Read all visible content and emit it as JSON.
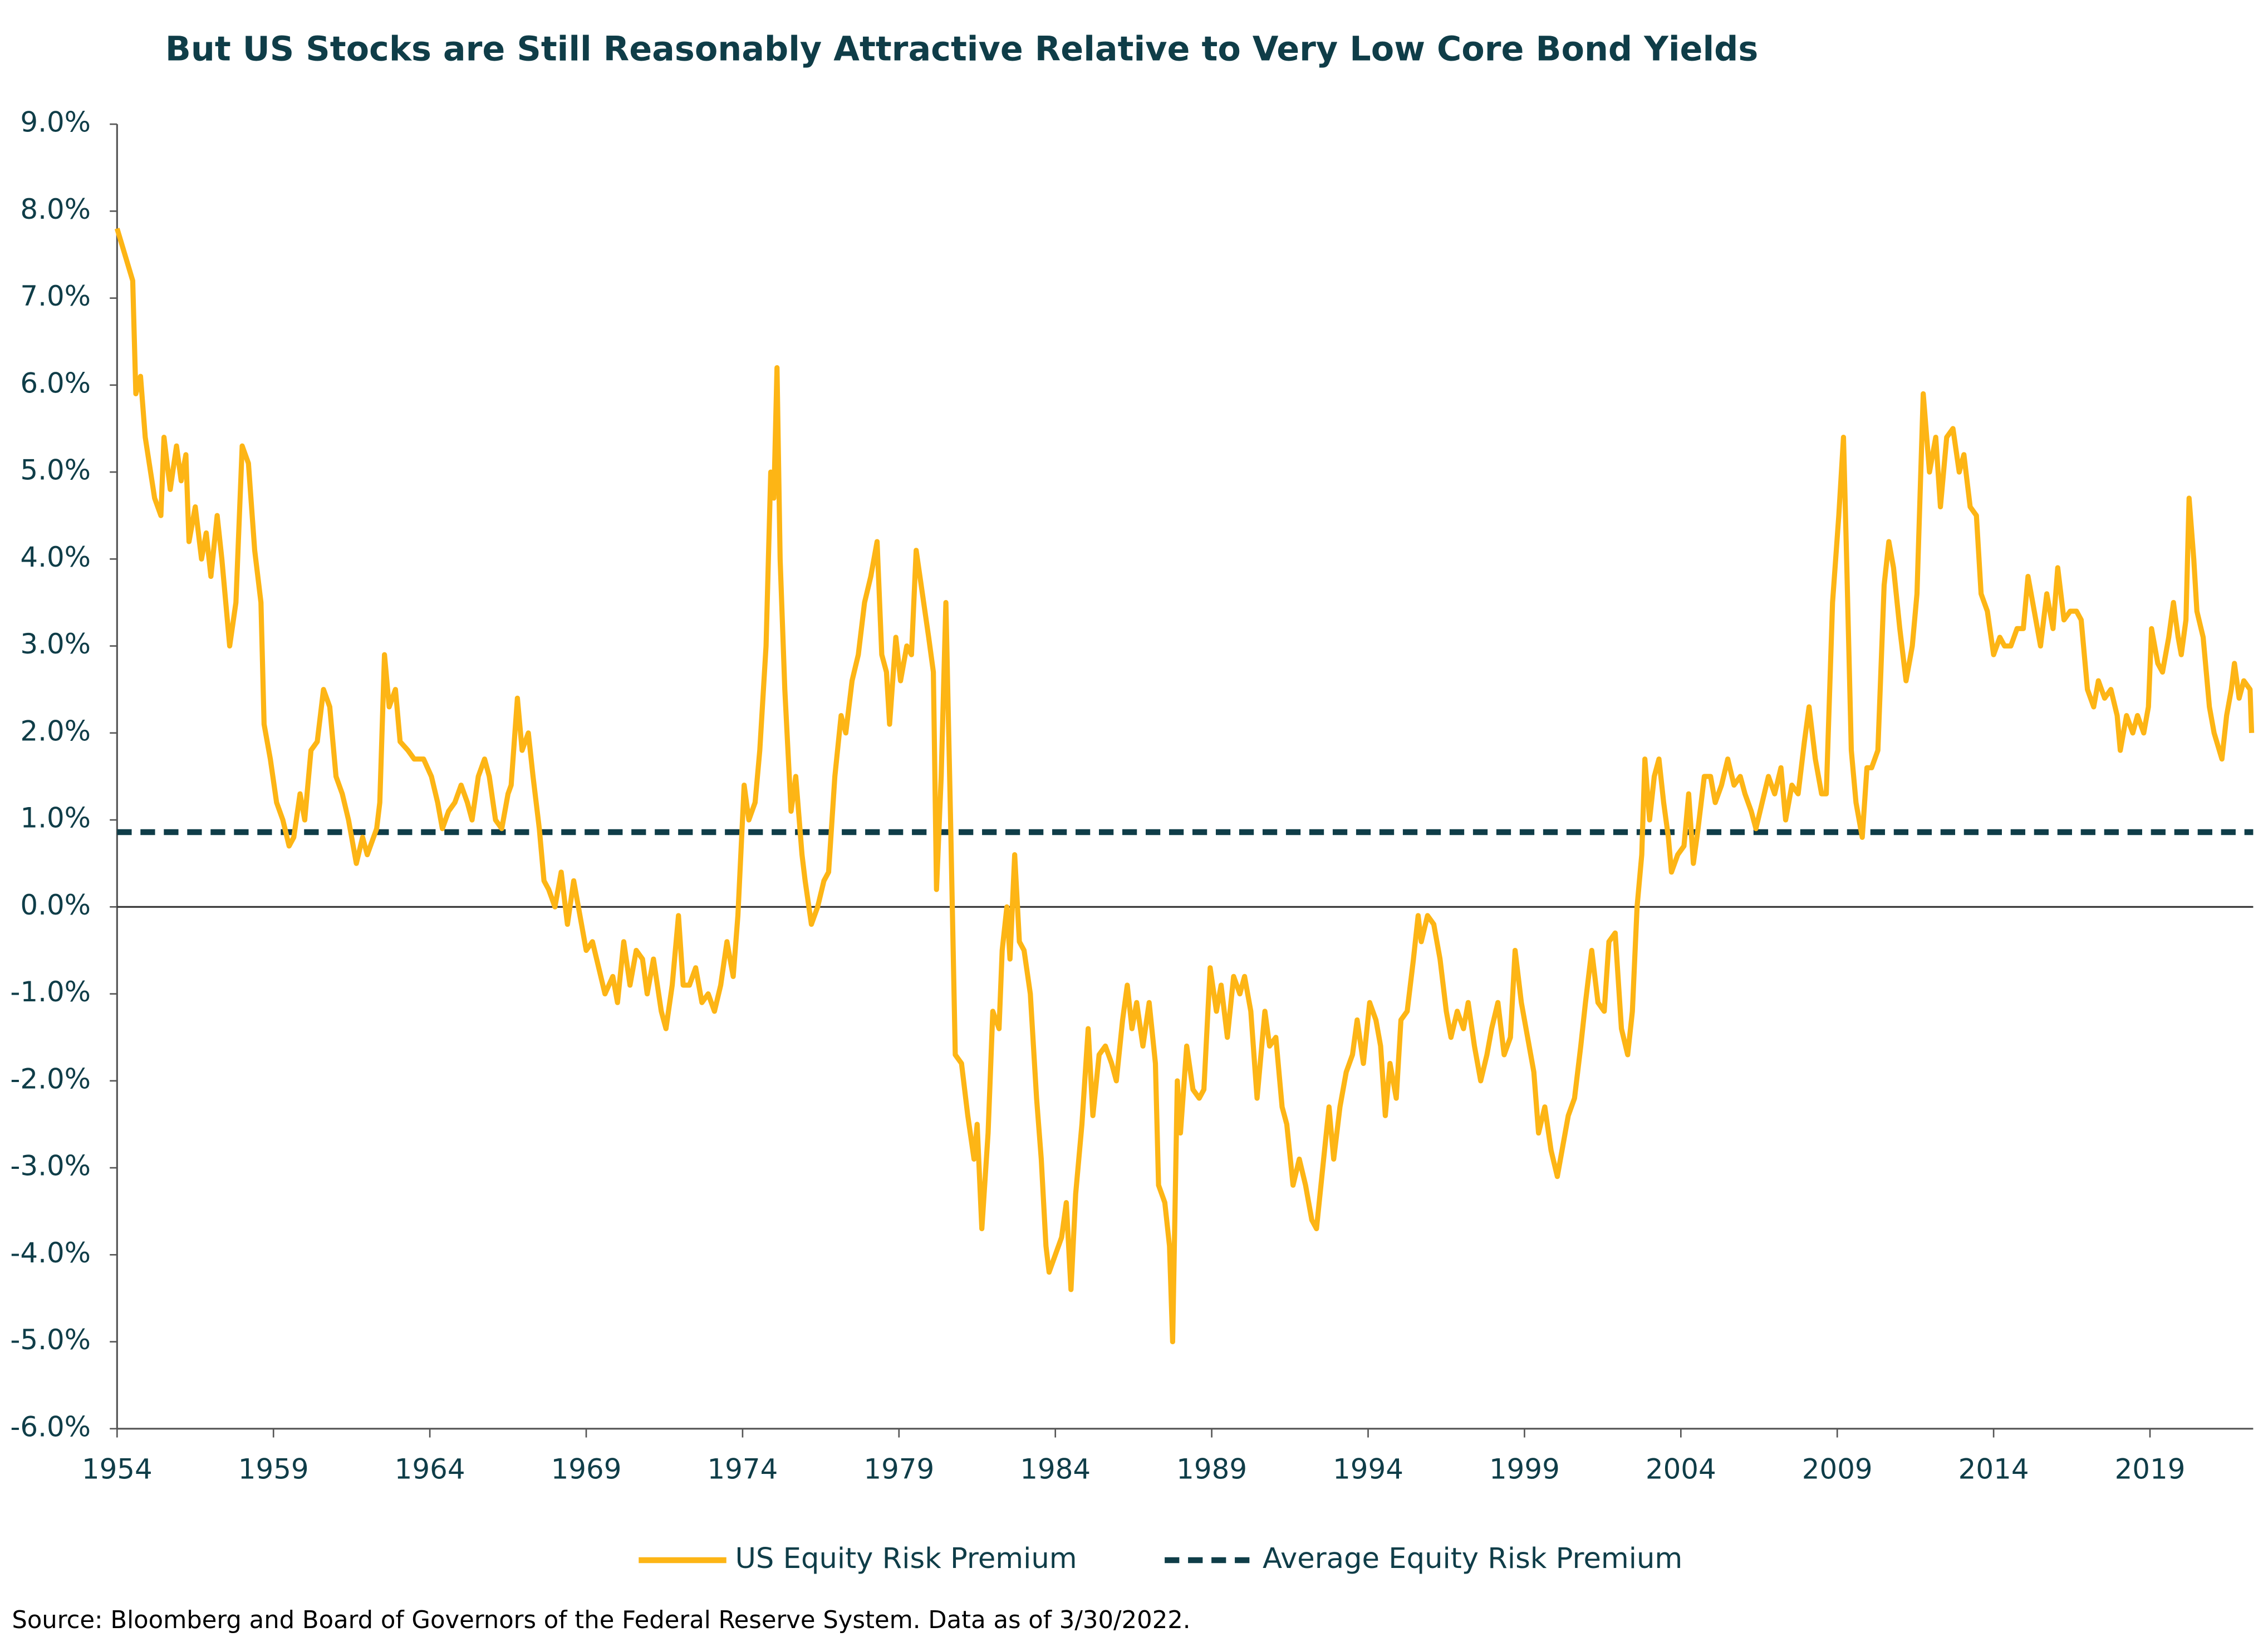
{
  "chart_data": {
    "type": "line",
    "title": "But US Stocks are Still Reasonably Attractive Relative to Very Low Core Bond Yields",
    "source": "Source: Bloomberg and Board of Governors of the Federal Reserve System. Data as of 3/30/2022.",
    "x": [
      1954.0,
      1954.5,
      1954.6,
      1954.75,
      1954.9,
      1955.2,
      1955.4,
      1955.5,
      1955.7,
      1955.9,
      1956.05,
      1956.2,
      1956.3,
      1956.5,
      1956.7,
      1956.85,
      1957.0,
      1957.2,
      1957.35,
      1957.6,
      1957.8,
      1958.0,
      1958.2,
      1958.4,
      1958.6,
      1958.7,
      1958.9,
      1959.1,
      1959.3,
      1959.5,
      1959.65,
      1959.85,
      1960.0,
      1960.2,
      1960.4,
      1960.6,
      1960.8,
      1961.0,
      1961.2,
      1961.4,
      1961.5,
      1961.65,
      1961.85,
      1962.0,
      1962.3,
      1962.4,
      1962.55,
      1962.7,
      1962.9,
      1963.05,
      1963.3,
      1963.5,
      1963.8,
      1964.05,
      1964.25,
      1964.4,
      1964.6,
      1964.8,
      1965.0,
      1965.2,
      1965.35,
      1965.55,
      1965.75,
      1965.9,
      1966.1,
      1966.3,
      1966.5,
      1966.6,
      1966.8,
      1966.95,
      1967.15,
      1967.3,
      1967.5,
      1967.65,
      1967.8,
      1968.0,
      1968.2,
      1968.4,
      1968.6,
      1968.8,
      1969.0,
      1969.2,
      1969.4,
      1969.6,
      1969.85,
      1970.0,
      1970.2,
      1970.4,
      1970.6,
      1970.8,
      1970.95,
      1971.15,
      1971.4,
      1971.55,
      1971.75,
      1971.95,
      1972.1,
      1972.3,
      1972.5,
      1972.7,
      1972.9,
      1973.1,
      1973.3,
      1973.5,
      1973.7,
      1973.85,
      1974.05,
      1974.2,
      1974.4,
      1974.55,
      1974.75,
      1974.9,
      1975.0,
      1975.1,
      1975.2,
      1975.35,
      1975.55,
      1975.7,
      1975.9,
      1976.0,
      1976.2,
      1976.4,
      1976.6,
      1976.75,
      1976.95,
      1977.15,
      1977.3,
      1977.5,
      1977.7,
      1977.9,
      1978.1,
      1978.3,
      1978.45,
      1978.6,
      1978.7,
      1978.9,
      1979.05,
      1979.25,
      1979.4,
      1979.55,
      1979.75,
      1979.95,
      1980.1,
      1980.2,
      1980.35,
      1980.5,
      1980.65,
      1980.8,
      1981.0,
      1981.2,
      1981.4,
      1981.5,
      1981.65,
      1981.85,
      1982.0,
      1982.2,
      1982.3,
      1982.45,
      1982.55,
      1982.7,
      1982.85,
      1983.0,
      1983.2,
      1983.4,
      1983.55,
      1983.7,
      1983.8,
      1984.0,
      1984.2,
      1984.35,
      1984.5,
      1984.65,
      1984.85,
      1985.05,
      1985.2,
      1985.4,
      1985.6,
      1985.8,
      1985.95,
      1986.15,
      1986.3,
      1986.45,
      1986.6,
      1986.8,
      1987.0,
      1987.2,
      1987.3,
      1987.5,
      1987.65,
      1987.75,
      1987.9,
      1988.0,
      1988.2,
      1988.4,
      1988.6,
      1988.75,
      1988.95,
      1989.15,
      1989.3,
      1989.5,
      1989.7,
      1989.9,
      1990.05,
      1990.25,
      1990.45,
      1990.7,
      1990.85,
      1991.05,
      1991.25,
      1991.4,
      1991.6,
      1991.8,
      1992.0,
      1992.2,
      1992.35,
      1992.55,
      1992.75,
      1992.9,
      1993.1,
      1993.3,
      1993.5,
      1993.65,
      1993.85,
      1994.05,
      1994.25,
      1994.4,
      1994.55,
      1994.7,
      1994.9,
      1995.05,
      1995.25,
      1995.45,
      1995.6,
      1995.7,
      1995.9,
      1996.1,
      1996.3,
      1996.5,
      1996.65,
      1996.85,
      1997.05,
      1997.2,
      1997.4,
      1997.6,
      1997.8,
      1997.95,
      1998.15,
      1998.35,
      1998.55,
      1998.7,
      1998.9,
      1999.1,
      1999.3,
      1999.45,
      1999.65,
      1999.85,
      2000.05,
      2000.2,
      2000.4,
      2000.6,
      2000.8,
      2000.95,
      2001.15,
      2001.35,
      2001.55,
      2001.7,
      2001.9,
      2002.1,
      2002.3,
      2002.45,
      2002.6,
      2002.75,
      2002.85,
      2003.0,
      2003.15,
      2003.3,
      2003.45,
      2003.6,
      2003.7,
      2003.9,
      2004.1,
      2004.25,
      2004.4,
      2004.55,
      2004.75,
      2004.95,
      2005.1,
      2005.3,
      2005.5,
      2005.7,
      2005.9,
      2006.05,
      2006.25,
      2006.4,
      2006.6,
      2006.8,
      2007.0,
      2007.2,
      2007.35,
      2007.55,
      2007.75,
      2007.95,
      2008.1,
      2008.3,
      2008.5,
      2008.65,
      2008.85,
      2009.05,
      2009.2,
      2009.3,
      2009.45,
      2009.6,
      2009.8,
      2009.95,
      2010.1,
      2010.3,
      2010.5,
      2010.65,
      2010.8,
      2011.0,
      2011.2,
      2011.4,
      2011.55,
      2011.75,
      2011.95,
      2012.15,
      2012.3,
      2012.5,
      2012.7,
      2012.9,
      2013.05,
      2013.25,
      2013.45,
      2013.6,
      2013.8,
      2014.0,
      2014.2,
      2014.35,
      2014.55,
      2014.75,
      2014.95,
      2015.1,
      2015.3,
      2015.5,
      2015.7,
      2015.9,
      2016.05,
      2016.25,
      2016.45,
      2016.65,
      2016.8,
      2017.0,
      2017.2,
      2017.35,
      2017.55,
      2017.75,
      2017.95,
      2018.05,
      2018.25,
      2018.45,
      2018.6,
      2018.8,
      2018.95,
      2019.05,
      2019.25,
      2019.4,
      2019.6,
      2019.75,
      2019.9,
      2020.0,
      2020.15,
      2020.25,
      2020.4,
      2020.5,
      2020.7,
      2020.9,
      2021.05,
      2021.3,
      2021.45,
      2021.6,
      2021.7,
      2021.85,
      2022.0,
      2022.2,
      2022.25
    ],
    "series": [
      {
        "name": "US Equity Risk Premium",
        "color": "#fdb515",
        "values": [
          7.8,
          7.2,
          5.9,
          6.1,
          5.4,
          4.7,
          4.5,
          5.4,
          4.8,
          5.3,
          4.9,
          5.2,
          4.2,
          4.6,
          4.0,
          4.3,
          3.8,
          4.5,
          4.0,
          3.0,
          3.5,
          5.3,
          5.1,
          4.1,
          3.5,
          2.1,
          1.7,
          1.2,
          1.0,
          0.7,
          0.8,
          1.3,
          1.0,
          1.8,
          1.9,
          2.5,
          2.3,
          1.5,
          1.3,
          1.0,
          0.8,
          0.5,
          0.8,
          0.6,
          0.9,
          1.2,
          2.9,
          2.3,
          2.5,
          1.9,
          1.8,
          1.7,
          1.7,
          1.5,
          1.2,
          0.9,
          1.1,
          1.2,
          1.4,
          1.2,
          1.0,
          1.5,
          1.7,
          1.5,
          1.0,
          0.9,
          1.3,
          1.4,
          2.4,
          1.8,
          2.0,
          1.5,
          0.9,
          0.3,
          0.2,
          0.0,
          0.4,
          -0.2,
          0.3,
          -0.1,
          -0.5,
          -0.4,
          -0.7,
          -1.0,
          -0.8,
          -1.1,
          -0.4,
          -0.9,
          -0.5,
          -0.6,
          -1.0,
          -0.6,
          -1.2,
          -1.4,
          -0.9,
          -0.1,
          -0.9,
          -0.9,
          -0.7,
          -1.1,
          -1.0,
          -1.2,
          -0.9,
          -0.4,
          -0.8,
          -0.1,
          1.4,
          1.0,
          1.2,
          1.8,
          3.0,
          5.0,
          4.7,
          6.2,
          4.0,
          2.5,
          1.1,
          1.5,
          0.6,
          0.3,
          -0.2,
          0.0,
          0.3,
          0.4,
          1.5,
          2.2,
          2.0,
          2.6,
          2.9,
          3.5,
          3.8,
          4.2,
          2.9,
          2.7,
          2.1,
          3.1,
          2.6,
          3.0,
          2.9,
          4.1,
          3.6,
          3.1,
          2.7,
          0.2,
          1.5,
          3.5,
          1.0,
          -1.7,
          -1.8,
          -2.4,
          -2.9,
          -2.5,
          -3.7,
          -2.6,
          -1.2,
          -1.4,
          -0.5,
          0.0,
          -0.6,
          0.6,
          -0.4,
          -0.5,
          -1.0,
          -2.2,
          -2.9,
          -3.9,
          -4.2,
          -4.0,
          -3.8,
          -3.4,
          -4.4,
          -3.3,
          -2.5,
          -1.4,
          -2.4,
          -1.7,
          -1.6,
          -1.8,
          -2.0,
          -1.3,
          -0.9,
          -1.4,
          -1.1,
          -1.6,
          -1.1,
          -1.8,
          -3.2,
          -3.4,
          -3.9,
          -5.0,
          -2.0,
          -2.6,
          -1.6,
          -2.1,
          -2.2,
          -2.1,
          -0.7,
          -1.2,
          -0.9,
          -1.5,
          -0.8,
          -1.0,
          -0.8,
          -1.2,
          -2.2,
          -1.2,
          -1.6,
          -1.5,
          -2.3,
          -2.5,
          -3.2,
          -2.9,
          -3.2,
          -3.6,
          -3.7,
          -3.0,
          -2.3,
          -2.9,
          -2.3,
          -1.9,
          -1.7,
          -1.3,
          -1.8,
          -1.1,
          -1.3,
          -1.6,
          -2.4,
          -1.8,
          -2.2,
          -1.3,
          -1.2,
          -0.6,
          -0.1,
          -0.4,
          -0.1,
          -0.2,
          -0.6,
          -1.2,
          -1.5,
          -1.2,
          -1.4,
          -1.1,
          -1.6,
          -2.0,
          -1.7,
          -1.4,
          -1.1,
          -1.7,
          -1.5,
          -0.5,
          -1.1,
          -1.5,
          -1.9,
          -2.6,
          -2.3,
          -2.8,
          -3.1,
          -2.8,
          -2.4,
          -2.2,
          -1.6,
          -1.1,
          -0.5,
          -1.1,
          -1.2,
          -0.4,
          -0.3,
          -1.4,
          -1.7,
          -1.2,
          0.0,
          0.6,
          1.7,
          1.0,
          1.5,
          1.7,
          1.2,
          0.8,
          0.4,
          0.6,
          0.7,
          1.3,
          0.5,
          0.9,
          1.5,
          1.5,
          1.2,
          1.4,
          1.7,
          1.4,
          1.5,
          1.3,
          1.1,
          0.9,
          1.2,
          1.5,
          1.3,
          1.6,
          1.0,
          1.4,
          1.3,
          1.9,
          2.3,
          1.7,
          1.3,
          1.3,
          3.5,
          4.5,
          5.4,
          4.0,
          1.8,
          1.2,
          0.8,
          1.6,
          1.6,
          1.8,
          3.7,
          4.2,
          3.9,
          3.2,
          2.6,
          3.0,
          3.6,
          5.9,
          5.0,
          5.4,
          4.6,
          5.4,
          5.5,
          5.0,
          5.2,
          4.6,
          4.5,
          3.6,
          3.4,
          2.9,
          3.1,
          3.0,
          3.0,
          3.2,
          3.2,
          3.8,
          3.4,
          3.0,
          3.6,
          3.2,
          3.9,
          3.3,
          3.4,
          3.4,
          3.3,
          2.5,
          2.3,
          2.6,
          2.4,
          2.5,
          2.2,
          1.8,
          2.2,
          2.0,
          2.2,
          2.0,
          2.3,
          3.2,
          2.8,
          2.7,
          3.1,
          3.5,
          3.1,
          2.9,
          3.3,
          4.7,
          4.0,
          3.4,
          3.1,
          2.3,
          2.0,
          1.7,
          2.2,
          2.5,
          2.8,
          2.4,
          2.6,
          2.5,
          2.0
        ]
      }
    ],
    "average_line": {
      "name": "Average Equity Risk Premium",
      "color": "#0f3d48",
      "value": 0.86,
      "dashed": true
    },
    "xlim": [
      1954,
      2022.3
    ],
    "xticks": [
      1954,
      1959,
      1964,
      1969,
      1974,
      1979,
      1984,
      1989,
      1994,
      1999,
      2004,
      2009,
      2014,
      2019
    ],
    "ylim": [
      -6,
      9
    ],
    "yticks": [
      {
        "value": 9,
        "label": "9.0%"
      },
      {
        "value": 8,
        "label": "8.0%"
      },
      {
        "value": 7,
        "label": "7.0%"
      },
      {
        "value": 6,
        "label": "6.0%"
      },
      {
        "value": 5,
        "label": "5.0%"
      },
      {
        "value": 4,
        "label": "4.0%"
      },
      {
        "value": 3,
        "label": "3.0%"
      },
      {
        "value": 2,
        "label": "2.0%"
      },
      {
        "value": 1,
        "label": "1.0%"
      },
      {
        "value": 0,
        "label": "0.0%"
      },
      {
        "value": -1,
        "label": "-1.0%"
      },
      {
        "value": -2,
        "label": "-2.0%"
      },
      {
        "value": -3,
        "label": "-3.0%"
      },
      {
        "value": -4,
        "label": "-4.0%"
      },
      {
        "value": -5,
        "label": "-5.0%"
      },
      {
        "value": -6,
        "label": "-6.0%"
      }
    ],
    "grid": false,
    "legend": "bottom"
  }
}
